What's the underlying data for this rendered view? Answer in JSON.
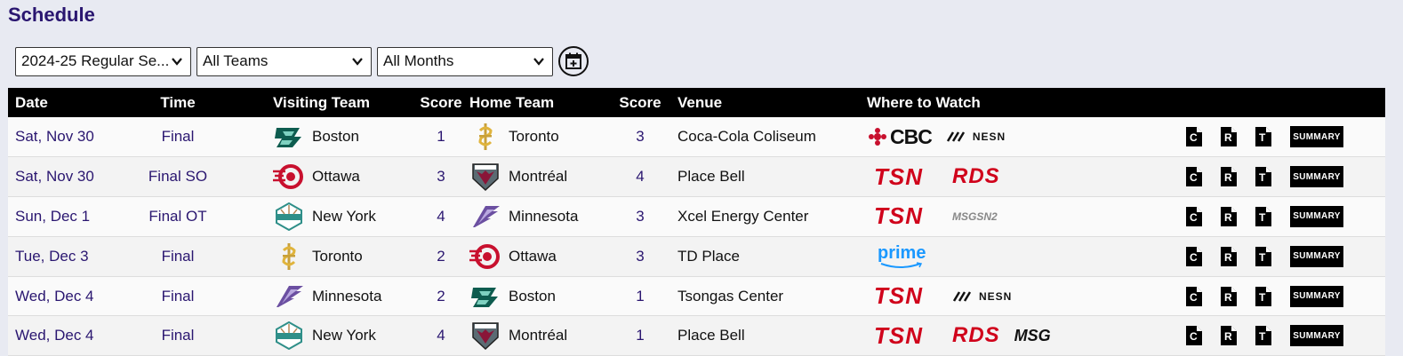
{
  "page": {
    "title": "Schedule"
  },
  "filters": {
    "season": "2024-25 Regular Se...",
    "teams": "All Teams",
    "months": "All Months"
  },
  "colors": {
    "header_bg": "#000000",
    "title": "#2a1670",
    "tsn_red": "#d0021b",
    "prime_blue": "#1a98ff"
  },
  "table": {
    "headers": [
      "Date",
      "Time",
      "Visiting Team",
      "Score",
      "Home Team",
      "Score",
      "Venue",
      "Where to Watch"
    ],
    "rows": [
      {
        "date": "Sat, Nov 30",
        "time": "Final",
        "visitor": "Boston",
        "visitor_logo": "boston-logo",
        "visitor_score": "1",
        "home": "Toronto",
        "home_logo": "toronto-logo",
        "home_score": "3",
        "venue": "Coca-Cola Coliseum",
        "broadcasters": [
          "CBC",
          "NESN"
        ]
      },
      {
        "date": "Sat, Nov 30",
        "time": "Final SO",
        "visitor": "Ottawa",
        "visitor_logo": "ottawa-logo",
        "visitor_score": "3",
        "home": "Montréal",
        "home_logo": "montreal-logo",
        "home_score": "4",
        "venue": "Place Bell",
        "broadcasters": [
          "TSN",
          "RDS"
        ]
      },
      {
        "date": "Sun, Dec 1",
        "time": "Final OT",
        "visitor": "New York",
        "visitor_logo": "newyork-logo",
        "visitor_score": "4",
        "home": "Minnesota",
        "home_logo": "minnesota-logo",
        "home_score": "3",
        "venue": "Xcel Energy Center",
        "broadcasters": [
          "TSN",
          "MSGSN2"
        ]
      },
      {
        "date": "Tue, Dec 3",
        "time": "Final",
        "visitor": "Toronto",
        "visitor_logo": "toronto-logo",
        "visitor_score": "2",
        "home": "Ottawa",
        "home_logo": "ottawa-logo",
        "home_score": "3",
        "venue": "TD Place",
        "broadcasters": [
          "prime"
        ]
      },
      {
        "date": "Wed, Dec 4",
        "time": "Final",
        "visitor": "Minnesota",
        "visitor_logo": "minnesota-logo",
        "visitor_score": "2",
        "home": "Boston",
        "home_logo": "boston-logo",
        "home_score": "1",
        "venue": "Tsongas Center",
        "broadcasters": [
          "TSN",
          "NESN"
        ]
      },
      {
        "date": "Wed, Dec 4",
        "time": "Final",
        "visitor": "New York",
        "visitor_logo": "newyork-logo",
        "visitor_score": "4",
        "home": "Montréal",
        "home_logo": "montreal-logo",
        "home_score": "1",
        "venue": "Place Bell",
        "broadcasters": [
          "TSN",
          "RDS",
          "MSG"
        ]
      }
    ],
    "actions": {
      "c": "C",
      "r": "R",
      "t": "T",
      "summary": "SUMMARY"
    }
  }
}
